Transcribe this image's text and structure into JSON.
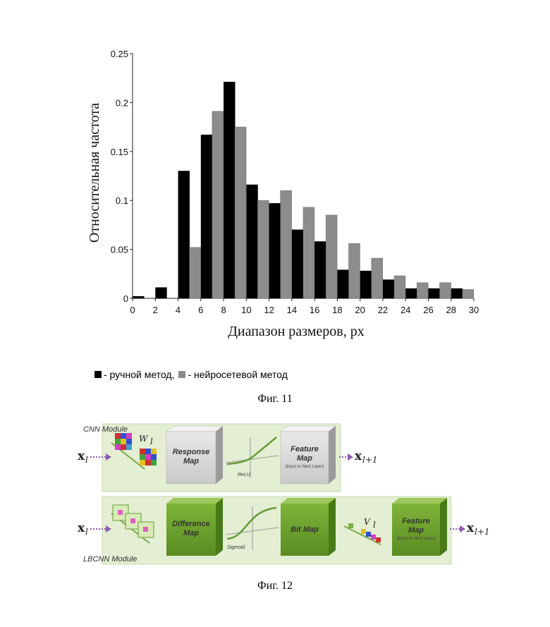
{
  "chart_data": {
    "type": "bar",
    "xlabel": "Диапазон размеров, px",
    "ylabel": "Относительная частота",
    "xlim": [
      0,
      30
    ],
    "ylim": [
      0,
      0.25
    ],
    "x_ticks": [
      "0",
      "2",
      "4",
      "6",
      "8",
      "10",
      "12",
      "14",
      "16",
      "18",
      "20",
      "22",
      "24",
      "26",
      "28",
      "30"
    ],
    "y_ticks": [
      "0",
      "0.05",
      "0.1",
      "0.15",
      "0.2",
      "0.25"
    ],
    "categories": [
      1,
      3,
      5,
      7,
      9,
      11,
      13,
      15,
      17,
      19,
      21,
      23,
      25,
      27,
      29
    ],
    "series": [
      {
        "name": "ручной метод",
        "color": "#000000",
        "values": [
          0.002,
          0.011,
          0.13,
          0.167,
          0.221,
          0.116,
          0.097,
          0.07,
          0.058,
          0.029,
          0.028,
          0.019,
          0.01,
          0.01,
          0.01
        ]
      },
      {
        "name": "нейросетевой метод",
        "color": "#8c8c8c",
        "values": [
          0.0,
          0.0,
          0.052,
          0.191,
          0.175,
          0.1,
          0.11,
          0.093,
          0.085,
          0.056,
          0.041,
          0.023,
          0.016,
          0.016,
          0.009
        ]
      }
    ],
    "grid": false
  },
  "legend": {
    "manual_label": "- ручной метод,",
    "neural_label": "- нейросетевой метод"
  },
  "captions": {
    "fig11": "Фиг. 11",
    "fig12": "Фиг. 12"
  },
  "figure12": {
    "cnn_module_label": "CNN Module",
    "lbcnn_module_label": "LBCNN Module",
    "input_symbol": "x",
    "input_sub": "l",
    "output_sub": "l+1",
    "weights_symbol": "W",
    "v_symbol": "V",
    "cnn_boxes": [
      {
        "title_lines": [
          "Response",
          "Map"
        ],
        "sub": ""
      },
      {
        "title_lines": [
          "Feature",
          "Map"
        ],
        "sub": "(Input to Next Layer)"
      }
    ],
    "lbcnn_boxes": [
      {
        "title_lines": [
          "Difference",
          "Map"
        ],
        "sub": ""
      },
      {
        "title_lines": [
          "Bit Map"
        ],
        "sub": ""
      },
      {
        "title_lines": [
          "Feature",
          "Map"
        ],
        "sub": "(Input to Next Layer)"
      }
    ],
    "cnn_activation": "ReLU",
    "lbcnn_activation": "Sigmoid"
  }
}
